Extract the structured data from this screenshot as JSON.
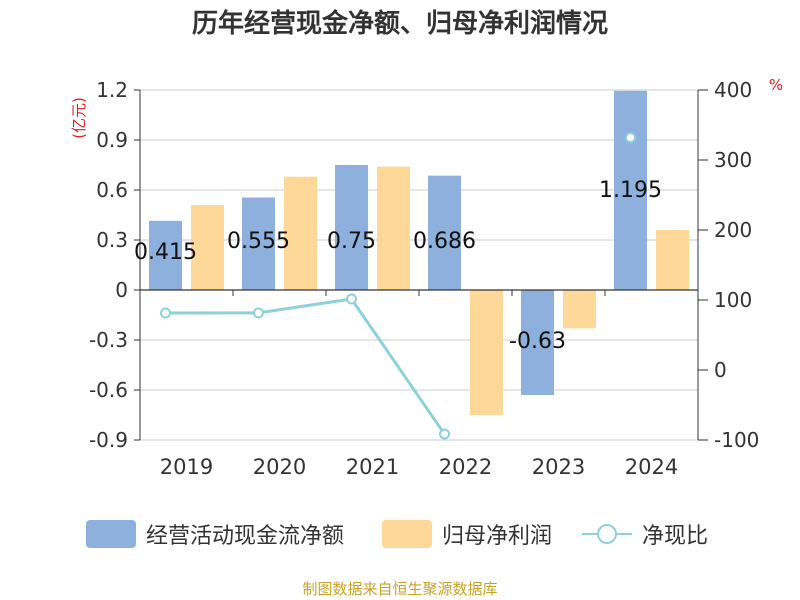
{
  "chart_data": {
    "type": "bar",
    "title": "历年经营现金净额、归母净利润情况",
    "categories": [
      "2019",
      "2020",
      "2021",
      "2022",
      "2023",
      "2024"
    ],
    "series": [
      {
        "name": "经营活动现金流净额",
        "kind": "bar",
        "axis": "left",
        "color": "#8eb0dc",
        "values": [
          0.415,
          0.555,
          0.75,
          0.686,
          -0.63,
          1.195
        ],
        "labels": [
          "0.415",
          "0.555",
          "0.75",
          "0.686",
          "-0.63",
          "1.195"
        ]
      },
      {
        "name": "归母净利润",
        "kind": "bar",
        "axis": "left",
        "color": "#fdd898",
        "values": [
          0.51,
          0.68,
          0.74,
          -0.75,
          -0.23,
          0.36
        ]
      },
      {
        "name": "净现比",
        "kind": "line",
        "axis": "right",
        "color": "#8dd1d9",
        "values": [
          81.4,
          81.6,
          101.4,
          -91.5,
          null,
          331.9
        ]
      }
    ],
    "y_left": {
      "unit": "(亿元)",
      "min": -0.9,
      "max": 1.2,
      "ticks": [
        "1.2",
        "0.9",
        "0.6",
        "0.3",
        "0",
        "-0.3",
        "-0.6",
        "-0.9"
      ]
    },
    "y_right": {
      "unit": "%",
      "min": -100,
      "max": 400,
      "ticks": [
        "400",
        "300",
        "200",
        "100",
        "0",
        "-100"
      ]
    },
    "grid": true,
    "legend": "bottom",
    "source": "制图数据来自恒生聚源数据库"
  }
}
